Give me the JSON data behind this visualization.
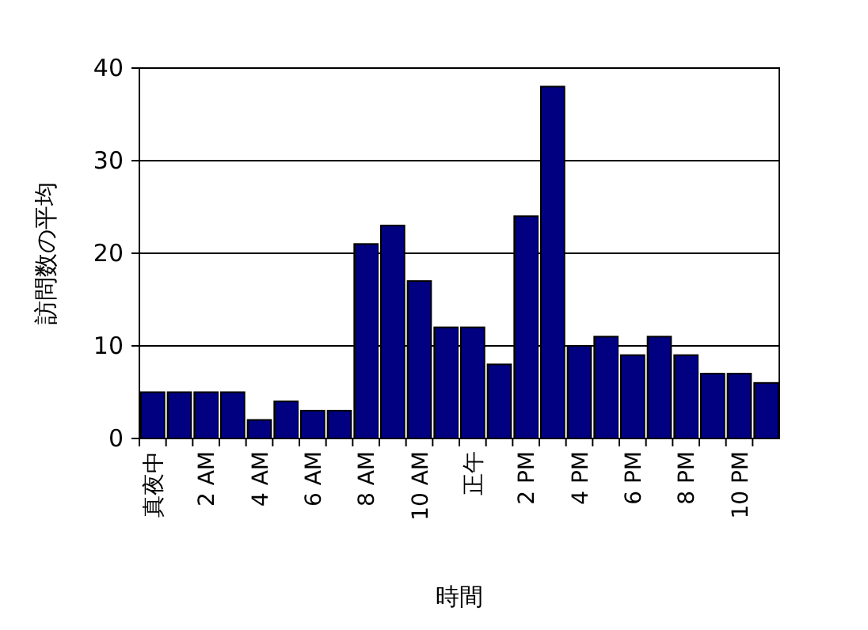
{
  "chart_data": {
    "type": "bar",
    "xlabel": "時間",
    "ylabel": "訪問数の平均",
    "categories": [
      "真夜中",
      null,
      "2 AM",
      null,
      "4 AM",
      null,
      "6 AM",
      null,
      "8 AM",
      null,
      "10 AM",
      null,
      "正午",
      null,
      "2 PM",
      null,
      "4 PM",
      null,
      "6 PM",
      null,
      "8 PM",
      null,
      "10 PM",
      null
    ],
    "values": [
      5,
      5,
      5,
      5,
      2,
      4,
      3,
      3,
      21,
      23,
      17,
      12,
      12,
      8,
      24,
      38,
      10,
      11,
      9,
      11,
      9,
      7,
      7,
      6
    ],
    "color": "#000080",
    "ylim": [
      0,
      40
    ],
    "yticks": [
      0,
      10,
      20,
      30,
      40
    ],
    "grid": "y"
  }
}
